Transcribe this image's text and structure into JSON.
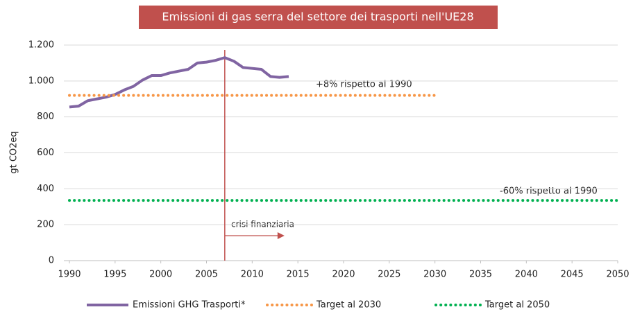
{
  "chart_data": {
    "type": "line",
    "title": "Emissioni  di gas serra del settore dei trasporti nell'UE28",
    "ylabel": "gt CO2eq",
    "xlim": [
      1990,
      2050
    ],
    "xticks": [
      1990,
      1995,
      2000,
      2005,
      2010,
      2015,
      2020,
      2025,
      2030,
      2035,
      2040,
      2045,
      2050
    ],
    "ylim": [
      0,
      1200
    ],
    "yticks": [
      0,
      200,
      400,
      600,
      800,
      {
        "value": 1000,
        "label": "1.000"
      },
      {
        "value": 1200,
        "label": "1.200"
      }
    ],
    "grid": true,
    "series": [
      {
        "name": "Emissioni GHG Trasporti*",
        "color": "#8064a2",
        "style": "solid",
        "x": [
          1990,
          1991,
          1992,
          1993,
          1994,
          1995,
          1996,
          1997,
          1998,
          1999,
          2000,
          2001,
          2002,
          2003,
          2004,
          2005,
          2006,
          2007,
          2008,
          2009,
          2010,
          2011,
          2012,
          2013,
          2014
        ],
        "values": [
          855,
          860,
          890,
          900,
          910,
          925,
          950,
          970,
          1005,
          1030,
          1030,
          1045,
          1055,
          1065,
          1100,
          1105,
          1115,
          1130,
          1110,
          1075,
          1070,
          1065,
          1025,
          1020,
          1025
        ]
      },
      {
        "name": "Target al 2030",
        "color": "#f79646",
        "style": "dotted",
        "x": [
          1990,
          2030
        ],
        "values": [
          920,
          920
        ]
      },
      {
        "name": "Target al 2050",
        "color": "#00b050",
        "style": "dotted",
        "x": [
          1990,
          2050
        ],
        "values": [
          335,
          335
        ]
      }
    ],
    "vline": {
      "x": 2007,
      "color": "#c0504d"
    },
    "annotations": [
      "+8% rispetto al 1990",
      "-60% rispetto al 1990",
      "crisi finanziaria"
    ]
  }
}
